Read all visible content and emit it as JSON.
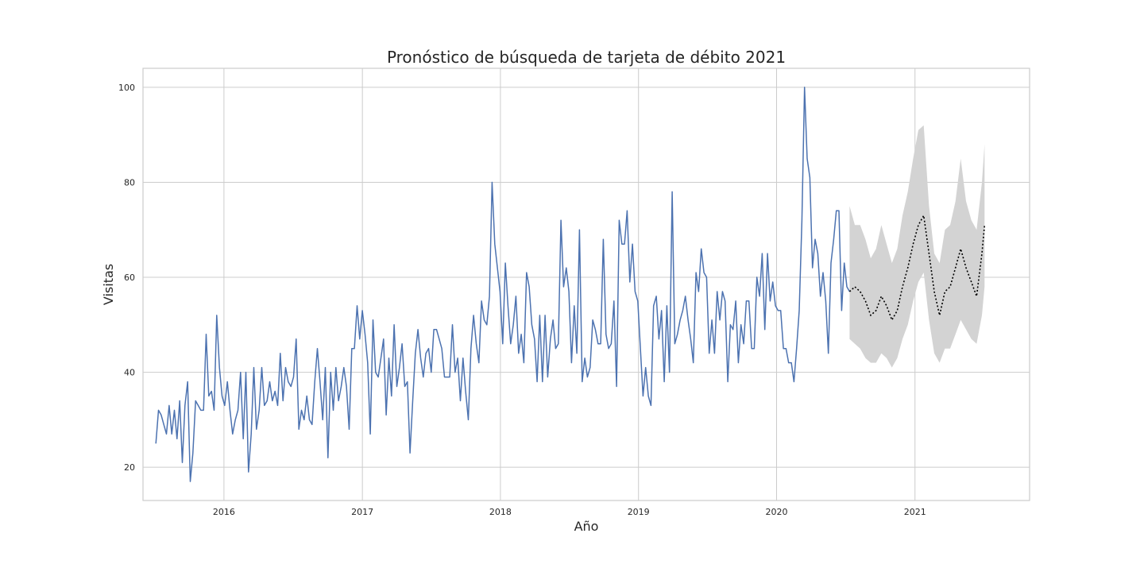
{
  "chart_data": {
    "type": "line",
    "title": "Pronóstico de búsqueda de tarjeta de débito 2021",
    "xlabel": "Año",
    "ylabel": "Visitas",
    "xlim": [
      "2015-06-01",
      "2021-10-31"
    ],
    "ylim": [
      13,
      104
    ],
    "grid": true,
    "x_ticks": [
      "2016",
      "2017",
      "2018",
      "2019",
      "2020",
      "2021"
    ],
    "y_ticks": [
      20,
      40,
      60,
      80,
      100
    ],
    "colors": {
      "history": "#4c72b0",
      "forecast": "#000000",
      "interval": "#d3d3d3"
    },
    "series": [
      {
        "style": "solid",
        "x": [
          "2015-07-05",
          "2015-07-12",
          "2015-07-19",
          "2015-07-26",
          "2015-08-02",
          "2015-08-09",
          "2015-08-16",
          "2015-08-23",
          "2015-08-30",
          "2015-09-06",
          "2015-09-13",
          "2015-09-20",
          "2015-09-27",
          "2015-10-04",
          "2015-10-11",
          "2015-10-18",
          "2015-10-25",
          "2015-11-01",
          "2015-11-08",
          "2015-11-15",
          "2015-11-22",
          "2015-11-29",
          "2015-12-06",
          "2015-12-13",
          "2015-12-20",
          "2015-12-27",
          "2016-01-03",
          "2016-01-10",
          "2016-01-17",
          "2016-01-24",
          "2016-01-31",
          "2016-02-07",
          "2016-02-14",
          "2016-02-21",
          "2016-02-28",
          "2016-03-06",
          "2016-03-13",
          "2016-03-20",
          "2016-03-27",
          "2016-04-03",
          "2016-04-10",
          "2016-04-17",
          "2016-04-24",
          "2016-05-01",
          "2016-05-08",
          "2016-05-15",
          "2016-05-22",
          "2016-05-29",
          "2016-06-05",
          "2016-06-12",
          "2016-06-19",
          "2016-06-26",
          "2016-07-03",
          "2016-07-10",
          "2016-07-17",
          "2016-07-24",
          "2016-07-31",
          "2016-08-07",
          "2016-08-14",
          "2016-08-21",
          "2016-08-28",
          "2016-09-04",
          "2016-09-11",
          "2016-09-18",
          "2016-09-25",
          "2016-10-02",
          "2016-10-09",
          "2016-10-16",
          "2016-10-23",
          "2016-10-30",
          "2016-11-06",
          "2016-11-13",
          "2016-11-20",
          "2016-11-27",
          "2016-12-04",
          "2016-12-11",
          "2016-12-18",
          "2016-12-25",
          "2017-01-01",
          "2017-01-08",
          "2017-01-15",
          "2017-01-22",
          "2017-01-29",
          "2017-02-05",
          "2017-02-12",
          "2017-02-19",
          "2017-02-26",
          "2017-03-05",
          "2017-03-12",
          "2017-03-19",
          "2017-03-26",
          "2017-04-02",
          "2017-04-09",
          "2017-04-16",
          "2017-04-23",
          "2017-04-30",
          "2017-05-07",
          "2017-05-14",
          "2017-05-21",
          "2017-05-28",
          "2017-06-04",
          "2017-06-11",
          "2017-06-18",
          "2017-06-25",
          "2017-07-02",
          "2017-07-09",
          "2017-07-16",
          "2017-07-23",
          "2017-07-30",
          "2017-08-06",
          "2017-08-13",
          "2017-08-20",
          "2017-08-27",
          "2017-09-03",
          "2017-09-10",
          "2017-09-17",
          "2017-09-24",
          "2017-10-01",
          "2017-10-08",
          "2017-10-15",
          "2017-10-22",
          "2017-10-29",
          "2017-11-05",
          "2017-11-12",
          "2017-11-19",
          "2017-11-26",
          "2017-12-03",
          "2017-12-10",
          "2017-12-17",
          "2017-12-24",
          "2017-12-31",
          "2018-01-07",
          "2018-01-14",
          "2018-01-21",
          "2018-01-28",
          "2018-02-04",
          "2018-02-11",
          "2018-02-18",
          "2018-02-25",
          "2018-03-04",
          "2018-03-11",
          "2018-03-18",
          "2018-03-25",
          "2018-04-01",
          "2018-04-08",
          "2018-04-15",
          "2018-04-22",
          "2018-04-29",
          "2018-05-06",
          "2018-05-13",
          "2018-05-20",
          "2018-05-27",
          "2018-06-03",
          "2018-06-10",
          "2018-06-17",
          "2018-06-24",
          "2018-07-01",
          "2018-07-08",
          "2018-07-15",
          "2018-07-22",
          "2018-07-29",
          "2018-08-05",
          "2018-08-12",
          "2018-08-19",
          "2018-08-26",
          "2018-09-02",
          "2018-09-09",
          "2018-09-16",
          "2018-09-23",
          "2018-09-30",
          "2018-10-07",
          "2018-10-14",
          "2018-10-21",
          "2018-10-28",
          "2018-11-04",
          "2018-11-11",
          "2018-11-18",
          "2018-11-25",
          "2018-12-02",
          "2018-12-09",
          "2018-12-16",
          "2018-12-23",
          "2018-12-30",
          "2019-01-06",
          "2019-01-13",
          "2019-01-20",
          "2019-01-27",
          "2019-02-03",
          "2019-02-10",
          "2019-02-17",
          "2019-02-24",
          "2019-03-03",
          "2019-03-10",
          "2019-03-17",
          "2019-03-24",
          "2019-03-31",
          "2019-04-07",
          "2019-04-14",
          "2019-04-21",
          "2019-04-28",
          "2019-05-05",
          "2019-05-12",
          "2019-05-19",
          "2019-05-26",
          "2019-06-02",
          "2019-06-09",
          "2019-06-16",
          "2019-06-23",
          "2019-06-30",
          "2019-07-07",
          "2019-07-14",
          "2019-07-21",
          "2019-07-28",
          "2019-08-04",
          "2019-08-11",
          "2019-08-18",
          "2019-08-25",
          "2019-09-01",
          "2019-09-08",
          "2019-09-15",
          "2019-09-22",
          "2019-09-29",
          "2019-10-06",
          "2019-10-13",
          "2019-10-20",
          "2019-10-27",
          "2019-11-03",
          "2019-11-10",
          "2019-11-17",
          "2019-11-24",
          "2019-12-01",
          "2019-12-08",
          "2019-12-15",
          "2019-12-22",
          "2019-12-29",
          "2020-01-05",
          "2020-01-12",
          "2020-01-19",
          "2020-01-26",
          "2020-02-02",
          "2020-02-09",
          "2020-02-16",
          "2020-02-23",
          "2020-03-01",
          "2020-03-08",
          "2020-03-15",
          "2020-03-22",
          "2020-03-29",
          "2020-04-05",
          "2020-04-12",
          "2020-04-19",
          "2020-04-26",
          "2020-05-03",
          "2020-05-10",
          "2020-05-17",
          "2020-05-24",
          "2020-05-31",
          "2020-06-07",
          "2020-06-14",
          "2020-06-21",
          "2020-06-28",
          "2020-07-05",
          "2020-07-12"
        ],
        "values": [
          25,
          32,
          31,
          29,
          27,
          33,
          27,
          32,
          26,
          34,
          21,
          33,
          38,
          17,
          23,
          34,
          33,
          32,
          32,
          48,
          35,
          36,
          32,
          52,
          41,
          35,
          33,
          38,
          32,
          27,
          30,
          32,
          40,
          26,
          40,
          19,
          27,
          41,
          28,
          32,
          41,
          33,
          34,
          38,
          34,
          36,
          33,
          44,
          34,
          41,
          38,
          37,
          39,
          47,
          28,
          32,
          30,
          35,
          30,
          29,
          38,
          45,
          38,
          30,
          41,
          22,
          40,
          32,
          41,
          34,
          37,
          41,
          37,
          28,
          45,
          45,
          54,
          47,
          53,
          48,
          42,
          27,
          51,
          40,
          39,
          43,
          47,
          31,
          43,
          35,
          50,
          37,
          41,
          46,
          37,
          38,
          23,
          34,
          44,
          49,
          43,
          39,
          44,
          45,
          40,
          49,
          49,
          47,
          45,
          39,
          39,
          39,
          50,
          40,
          43,
          34,
          43,
          36,
          30,
          45,
          52,
          46,
          42,
          55,
          51,
          50,
          56,
          80,
          67,
          62,
          57,
          46,
          63,
          54,
          46,
          50,
          56,
          44,
          48,
          42,
          61,
          58,
          50,
          47,
          38,
          52,
          38,
          52,
          39,
          47,
          51,
          45,
          46,
          72,
          58,
          62,
          57,
          42,
          54,
          44,
          70,
          38,
          43,
          39,
          41,
          51,
          49,
          46,
          46,
          68,
          48,
          45,
          46,
          55,
          37,
          72,
          67,
          67,
          74,
          59,
          67,
          57,
          55,
          45,
          35,
          41,
          35,
          33,
          54,
          56,
          47,
          53,
          38,
          54,
          40,
          78,
          46,
          48,
          51,
          53,
          56,
          51,
          47,
          42,
          61,
          57,
          66,
          61,
          60,
          44,
          51,
          44,
          57,
          51,
          57,
          55,
          38,
          50,
          49,
          55,
          42,
          50,
          46,
          55,
          55,
          45,
          45,
          60,
          56,
          65,
          49,
          65,
          55,
          59,
          54,
          53,
          53,
          45,
          45,
          42,
          42,
          38,
          45,
          53,
          72,
          100,
          85,
          81,
          62,
          68,
          65,
          56,
          61,
          55,
          44,
          63,
          68,
          74,
          74,
          53,
          63,
          58,
          57
        ]
      },
      {
        "style": "dotted",
        "x": [
          "2020-07-12",
          "2020-07-26",
          "2020-08-09",
          "2020-08-23",
          "2020-09-06",
          "2020-09-20",
          "2020-10-04",
          "2020-10-18",
          "2020-11-01",
          "2020-11-15",
          "2020-11-29",
          "2020-12-13",
          "2020-12-27",
          "2021-01-10",
          "2021-01-24",
          "2021-02-07",
          "2021-02-21",
          "2021-03-07",
          "2021-03-21",
          "2021-04-04",
          "2021-04-18",
          "2021-05-02",
          "2021-05-16",
          "2021-05-30",
          "2021-06-13",
          "2021-06-27",
          "2021-07-04"
        ],
        "values": [
          57,
          58,
          57,
          55,
          52,
          53,
          56,
          54,
          51,
          53,
          58,
          62,
          67,
          71,
          73,
          65,
          57,
          52,
          57,
          58,
          62,
          66,
          62,
          59,
          56,
          65,
          71
        ],
        "lower": [
          47,
          46,
          45,
          43,
          42,
          42,
          44,
          43,
          41,
          43,
          47,
          50,
          55,
          59,
          61,
          51,
          44,
          42,
          45,
          45,
          48,
          51,
          49,
          47,
          46,
          52,
          58
        ],
        "upper": [
          75,
          71,
          71,
          68,
          64,
          66,
          71,
          67,
          63,
          66,
          73,
          78,
          85,
          91,
          92,
          75,
          65,
          63,
          70,
          71,
          76,
          85,
          76,
          72,
          70,
          80,
          88
        ]
      }
    ]
  }
}
